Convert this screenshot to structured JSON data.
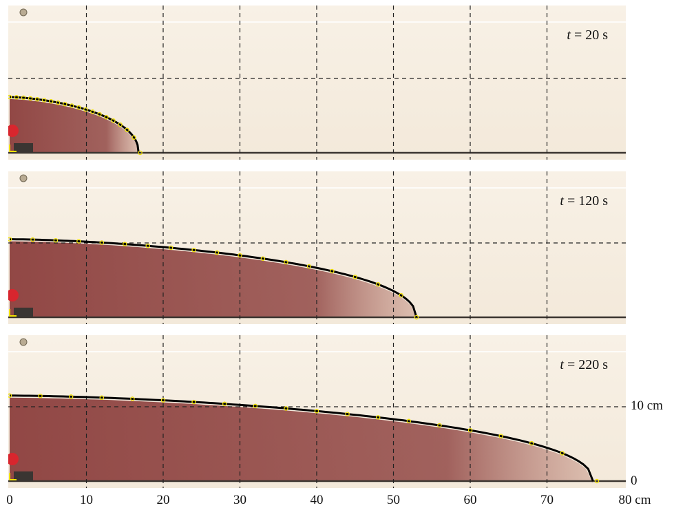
{
  "panels": [
    {
      "time_label_prefix": "t",
      "time_label_value": "= 20 s",
      "time_s": 20,
      "front_cm": 16.8,
      "origin_height_cm": 7.5,
      "markers_cm": [
        0.0,
        0.9,
        1.8,
        2.7,
        3.6,
        4.5,
        5.4,
        6.3,
        7.2,
        8.1,
        9.0,
        9.9,
        10.8,
        11.7,
        12.6,
        13.5,
        14.4,
        15.3,
        16.2,
        17.0
      ]
    },
    {
      "time_label_prefix": "t",
      "time_label_value": "= 120 s",
      "time_s": 120,
      "front_cm": 53.0,
      "origin_height_cm": 10.5,
      "markers_cm": [
        0.0,
        3.0,
        6.0,
        9.0,
        12.0,
        15.0,
        18.0,
        21.0,
        24.0,
        27.0,
        30.0,
        33.0,
        36.0,
        39.0,
        42.0,
        45.0,
        48.0,
        51.0,
        53.0
      ]
    },
    {
      "time_label_prefix": "t",
      "time_label_value": "= 220 s",
      "time_s": 220,
      "front_cm": 76.0,
      "origin_height_cm": 11.5,
      "markers_cm": [
        0.0,
        4.0,
        8.0,
        12.0,
        16.0,
        20.0,
        24.0,
        28.0,
        32.0,
        36.0,
        40.0,
        44.0,
        48.0,
        52.0,
        56.0,
        60.0,
        64.0,
        68.0,
        72.0,
        76.5
      ]
    }
  ],
  "x_axis": {
    "ticks": [
      "0",
      "10",
      "20",
      "30",
      "40",
      "50",
      "60",
      "70",
      "80 cm"
    ],
    "values": [
      0,
      10,
      20,
      30,
      40,
      50,
      60,
      70,
      80
    ]
  },
  "y_axis": {
    "ticks": [
      "10 cm",
      "0"
    ],
    "values": [
      10,
      0
    ]
  },
  "colors": {
    "background": "#f3e9da",
    "background_top": "#f8f1e6",
    "fluid": "#8c3f3d",
    "fluid_light": "#c99b8c",
    "curve": "#000000",
    "marker": "#f2e200",
    "grid": "#222222",
    "valve": "#d8262e"
  }
}
